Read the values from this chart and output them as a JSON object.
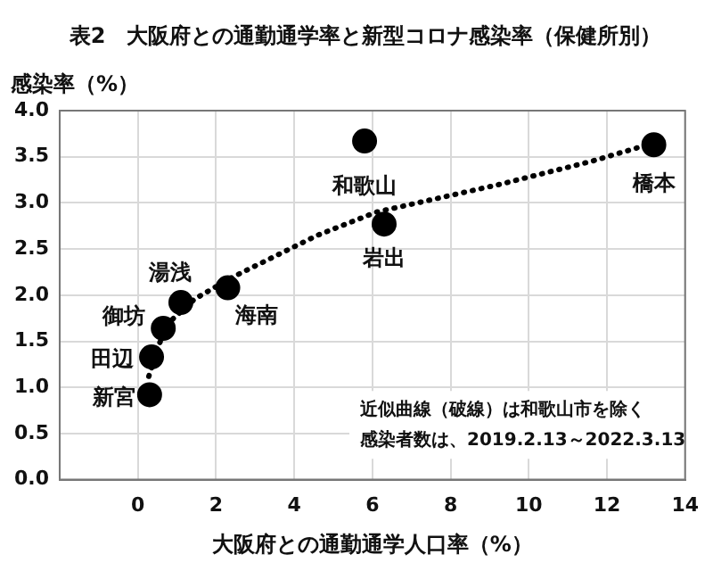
{
  "chart_data": {
    "type": "scatter",
    "title": "表2　大阪府との通勤通学率と新型コロナ感染率（保健所別）",
    "xlabel": "大阪府との通勤通学人口率（%）",
    "ylabel": "感染率（%）",
    "xlim": [
      -2,
      14
    ],
    "xticks": [
      {
        "value": -2,
        "label": null
      },
      0,
      2,
      4,
      6,
      8,
      10,
      12,
      14
    ],
    "ylim": [
      0,
      4
    ],
    "yticks": [
      {
        "value": 0,
        "label": "0.0"
      },
      0.5,
      {
        "value": 1,
        "label": "1.0"
      },
      1.5,
      {
        "value": 2,
        "label": "2.0"
      },
      2.5,
      {
        "value": 3,
        "label": "3.0"
      },
      3.5,
      {
        "value": 4,
        "label": "4.0"
      }
    ],
    "series": [
      {
        "type": "scatter",
        "color": "#000000",
        "marker": "circle",
        "x": [
          0.3,
          0.35,
          0.65,
          1.1,
          2.3,
          6.3,
          5.8,
          13.2
        ],
        "values": [
          0.92,
          1.33,
          1.64,
          1.92,
          2.08,
          2.77,
          3.67,
          3.63
        ]
      },
      {
        "type": "line",
        "color": "#000000",
        "marker": "none",
        "line_style": "dotted",
        "x": [
          0.28,
          0.53,
          0.84,
          1.46,
          2.4,
          4.6,
          6.1,
          9.25,
          11.6,
          13.2
        ],
        "values": [
          1.12,
          1.46,
          1.72,
          1.96,
          2.19,
          2.65,
          2.9,
          3.2,
          3.45,
          3.65
        ]
      }
    ],
    "annotations": [
      {
        "text": "新宮",
        "x": 0.3,
        "y": 0.92
      },
      {
        "text": "田辺",
        "x": 0.35,
        "y": 1.33
      },
      {
        "text": "御坊",
        "x": 0.65,
        "y": 1.64
      },
      {
        "text": "湯浅",
        "x": 1.1,
        "y": 1.92
      },
      {
        "text": "海南",
        "x": 2.3,
        "y": 2.08
      },
      {
        "text": "岩出",
        "x": 6.3,
        "y": 2.77
      },
      {
        "text": "和歌山",
        "x": 5.8,
        "y": 3.67
      },
      {
        "text": "橋本",
        "x": 13.2,
        "y": 3.63
      },
      "近似曲線（破線）は和歌山市を除く",
      "感染者数は、2019.2.13～2022.3.13"
    ],
    "grid": true,
    "legend": false
  }
}
